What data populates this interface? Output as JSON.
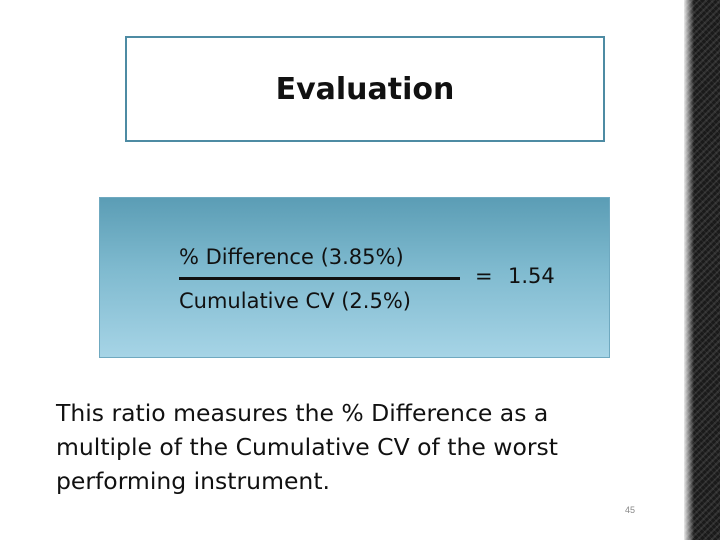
{
  "title": "Evaluation",
  "formula": {
    "numerator": "% Difference (3.85%)",
    "denominator": "Cumulative CV (2.5%)",
    "equals": "=",
    "result": "1.54"
  },
  "explanation": "This ratio measures the % Difference as a multiple of the Cumulative CV of the worst performing instrument.",
  "page_number": "45",
  "colors": {
    "title_border": "#4d8ba3",
    "formula_box_top": "#5b9db5",
    "formula_box_bottom": "#a6d4e6"
  }
}
